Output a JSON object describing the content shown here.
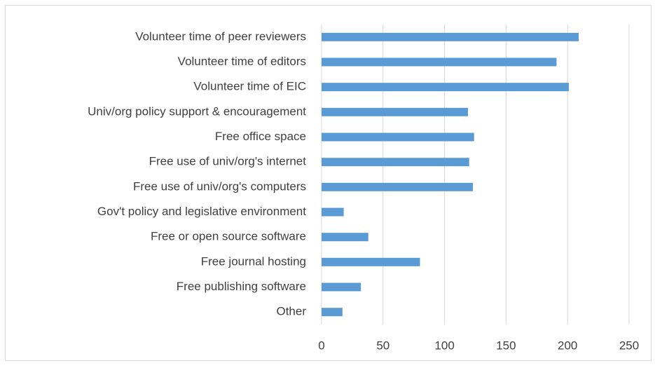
{
  "chart_data": {
    "type": "barh",
    "categories": [
      "Volunteer time of peer reviewers",
      "Volunteer time of editors",
      "Volunteer time of EIC",
      "Univ/org policy support & encouragement",
      "Free office space",
      "Free use of univ/org's internet",
      "Free use of univ/org's computers",
      "Gov't policy and legislative environment",
      "Free or open source software",
      "Free journal hosting",
      "Free publishing software",
      "Other"
    ],
    "values": [
      209,
      191,
      201,
      119,
      124,
      120,
      123,
      18,
      38,
      80,
      32,
      17
    ],
    "color": "#5b9bd5",
    "xlim": [
      0,
      250
    ],
    "xticks": [
      0,
      50,
      100,
      150,
      200,
      250
    ],
    "grid": true
  }
}
